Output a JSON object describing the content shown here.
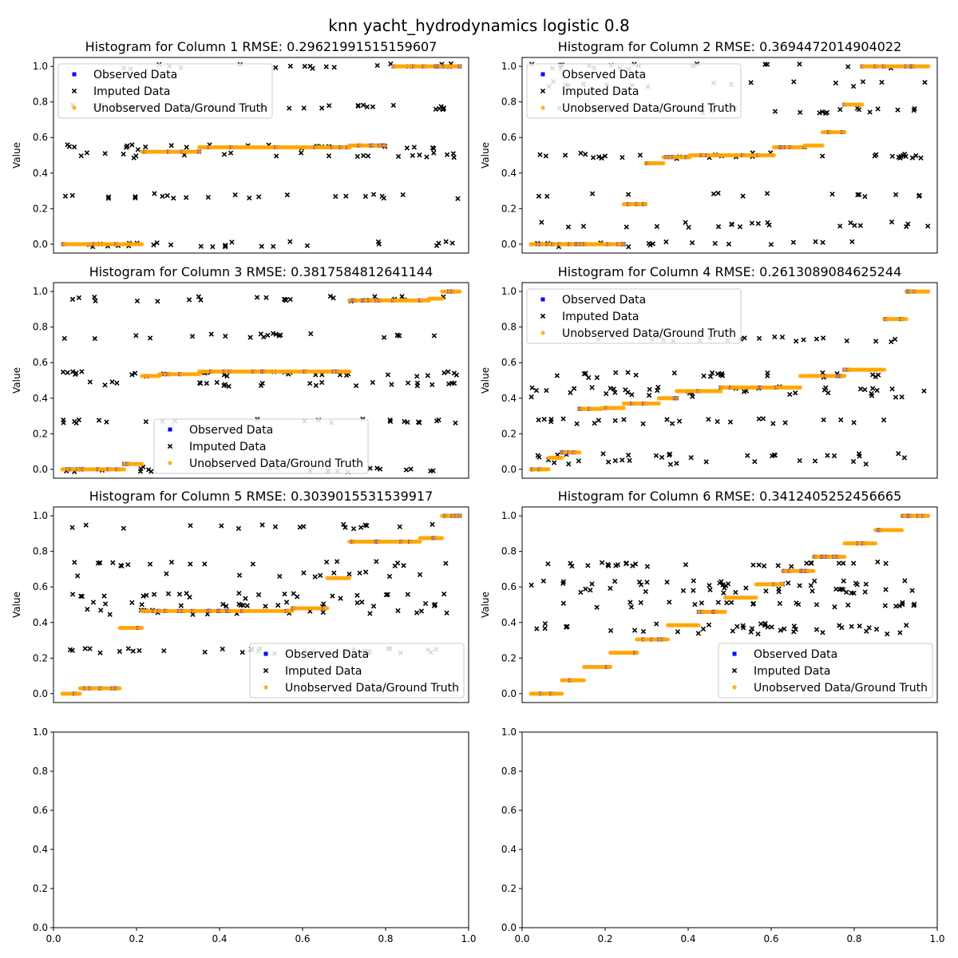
{
  "figure_title": "knn yacht_hydrodynamics logistic 0.8",
  "colors": {
    "observed": "#0000ff",
    "imputed": "#000000",
    "unobserved": "#ffa500",
    "axes": "#000000"
  },
  "chart_data": [
    {
      "type": "scatter",
      "title": "Histogram for Column 1 RMSE: 0.29621991515159607",
      "xlabel": "",
      "ylabel": "Value",
      "xlim": [
        0.03,
        0.97
      ],
      "ylim": [
        -0.05,
        1.05
      ],
      "yticks": [
        0.0,
        0.2,
        0.4,
        0.6,
        0.8,
        1.0
      ],
      "yticklabels": [
        "0.0",
        "0.2",
        "0.4",
        "0.6",
        "0.8",
        "1.0"
      ],
      "show_xticks": false,
      "legend": "upper-left",
      "levels": [
        {
          "y": 0.0,
          "x0": 0.05,
          "x1": 0.23
        },
        {
          "y": 0.52,
          "x0": 0.23,
          "x1": 0.36
        },
        {
          "y": 0.545,
          "x0": 0.36,
          "x1": 0.7
        },
        {
          "y": 0.555,
          "x0": 0.7,
          "x1": 0.78
        },
        {
          "y": 1.0,
          "x0": 0.8,
          "x1": 0.95
        }
      ],
      "imputed_levels": [
        0.0,
        0.27,
        0.5,
        0.545,
        0.77,
        1.0
      ],
      "series": [
        {
          "name": "Observed Data",
          "marker": "square"
        },
        {
          "name": "Imputed Data",
          "marker": "x"
        },
        {
          "name": "Unobserved Data/Ground Truth",
          "marker": "circle"
        }
      ]
    },
    {
      "type": "scatter",
      "title": "Histogram for Column 2 RMSE: 0.3694472014904022",
      "xlabel": "",
      "ylabel": "Value",
      "xlim": [
        0.03,
        0.97
      ],
      "ylim": [
        -0.05,
        1.05
      ],
      "yticks": [
        0.0,
        0.2,
        0.4,
        0.6,
        0.8,
        1.0
      ],
      "yticklabels": [
        "0.0",
        "0.2",
        "0.4",
        "0.6",
        "0.8",
        "1.0"
      ],
      "show_xticks": false,
      "legend": "upper-left",
      "levels": [
        {
          "y": 0.0,
          "x0": 0.05,
          "x1": 0.26
        },
        {
          "y": 0.225,
          "x0": 0.26,
          "x1": 0.31
        },
        {
          "y": 0.455,
          "x0": 0.31,
          "x1": 0.35
        },
        {
          "y": 0.49,
          "x0": 0.35,
          "x1": 0.41
        },
        {
          "y": 0.5,
          "x0": 0.41,
          "x1": 0.6
        },
        {
          "y": 0.545,
          "x0": 0.6,
          "x1": 0.67
        },
        {
          "y": 0.555,
          "x0": 0.67,
          "x1": 0.71
        },
        {
          "y": 0.63,
          "x0": 0.71,
          "x1": 0.76
        },
        {
          "y": 0.785,
          "x0": 0.76,
          "x1": 0.8
        },
        {
          "y": 1.0,
          "x0": 0.8,
          "x1": 0.95
        }
      ],
      "imputed_levels": [
        0.0,
        0.11,
        0.28,
        0.49,
        0.5,
        0.75,
        0.9,
        1.0
      ],
      "series": [
        {
          "name": "Observed Data",
          "marker": "square"
        },
        {
          "name": "Imputed Data",
          "marker": "x"
        },
        {
          "name": "Unobserved Data/Ground Truth",
          "marker": "circle"
        }
      ]
    },
    {
      "type": "scatter",
      "title": "Histogram for Column 3 RMSE: 0.3817584812641144",
      "xlabel": "",
      "ylabel": "Value",
      "xlim": [
        0.03,
        0.97
      ],
      "ylim": [
        -0.05,
        1.05
      ],
      "yticks": [
        0.0,
        0.2,
        0.4,
        0.6,
        0.8,
        1.0
      ],
      "yticklabels": [
        "0.0",
        "0.2",
        "0.4",
        "0.6",
        "0.8",
        "1.0"
      ],
      "show_xticks": false,
      "legend": "lower-center",
      "levels": [
        {
          "y": 0.0,
          "x0": 0.05,
          "x1": 0.19
        },
        {
          "y": 0.03,
          "x0": 0.19,
          "x1": 0.23
        },
        {
          "y": 0.525,
          "x0": 0.23,
          "x1": 0.27
        },
        {
          "y": 0.535,
          "x0": 0.27,
          "x1": 0.36
        },
        {
          "y": 0.55,
          "x0": 0.36,
          "x1": 0.7
        },
        {
          "y": 0.95,
          "x0": 0.7,
          "x1": 0.88
        },
        {
          "y": 0.96,
          "x0": 0.88,
          "x1": 0.91
        },
        {
          "y": 1.0,
          "x0": 0.91,
          "x1": 0.95
        }
      ],
      "imputed_levels": [
        0.0,
        0.27,
        0.48,
        0.535,
        0.75,
        0.96
      ],
      "series": [
        {
          "name": "Observed Data",
          "marker": "square"
        },
        {
          "name": "Imputed Data",
          "marker": "x"
        },
        {
          "name": "Unobserved Data/Ground Truth",
          "marker": "circle"
        }
      ]
    },
    {
      "type": "scatter",
      "title": "Histogram for Column 4 RMSE: 0.2613089084625244",
      "xlabel": "",
      "ylabel": "Value",
      "xlim": [
        0.03,
        0.97
      ],
      "ylim": [
        -0.05,
        1.05
      ],
      "yticks": [
        0.0,
        0.2,
        0.4,
        0.6,
        0.8,
        1.0
      ],
      "yticklabels": [
        "0.0",
        "0.2",
        "0.4",
        "0.6",
        "0.8",
        "1.0"
      ],
      "show_xticks": false,
      "legend": "upper-left",
      "levels": [
        {
          "y": 0.0,
          "x0": 0.05,
          "x1": 0.09
        },
        {
          "y": 0.065,
          "x0": 0.09,
          "x1": 0.12
        },
        {
          "y": 0.095,
          "x0": 0.12,
          "x1": 0.16
        },
        {
          "y": 0.34,
          "x0": 0.16,
          "x1": 0.21
        },
        {
          "y": 0.345,
          "x0": 0.21,
          "x1": 0.26
        },
        {
          "y": 0.37,
          "x0": 0.26,
          "x1": 0.34
        },
        {
          "y": 0.4,
          "x0": 0.34,
          "x1": 0.38
        },
        {
          "y": 0.44,
          "x0": 0.38,
          "x1": 0.48
        },
        {
          "y": 0.46,
          "x0": 0.48,
          "x1": 0.66
        },
        {
          "y": 0.525,
          "x0": 0.66,
          "x1": 0.76
        },
        {
          "y": 0.56,
          "x0": 0.76,
          "x1": 0.85
        },
        {
          "y": 0.845,
          "x0": 0.85,
          "x1": 0.9
        },
        {
          "y": 1.0,
          "x0": 0.9,
          "x1": 0.95
        }
      ],
      "imputed_levels": [
        0.04,
        0.08,
        0.27,
        0.42,
        0.45,
        0.53,
        0.73
      ],
      "series": [
        {
          "name": "Observed Data",
          "marker": "square"
        },
        {
          "name": "Imputed Data",
          "marker": "x"
        },
        {
          "name": "Unobserved Data/Ground Truth",
          "marker": "circle"
        }
      ]
    },
    {
      "type": "scatter",
      "title": "Histogram for Column 5 RMSE: 0.3039015531539917",
      "xlabel": "",
      "ylabel": "Value",
      "xlim": [
        0.03,
        0.97
      ],
      "ylim": [
        -0.05,
        1.05
      ],
      "yticks": [
        0.0,
        0.2,
        0.4,
        0.6,
        0.8,
        1.0
      ],
      "yticklabels": [
        "0.0",
        "0.2",
        "0.4",
        "0.6",
        "0.8",
        "1.0"
      ],
      "show_xticks": false,
      "legend": "lower-right",
      "levels": [
        {
          "y": 0.0,
          "x0": 0.05,
          "x1": 0.09
        },
        {
          "y": 0.03,
          "x0": 0.09,
          "x1": 0.18
        },
        {
          "y": 0.37,
          "x0": 0.18,
          "x1": 0.23
        },
        {
          "y": 0.465,
          "x0": 0.23,
          "x1": 0.57
        },
        {
          "y": 0.48,
          "x0": 0.57,
          "x1": 0.65
        },
        {
          "y": 0.65,
          "x0": 0.65,
          "x1": 0.7
        },
        {
          "y": 0.855,
          "x0": 0.7,
          "x1": 0.86
        },
        {
          "y": 0.875,
          "x0": 0.86,
          "x1": 0.91
        },
        {
          "y": 1.0,
          "x0": 0.91,
          "x1": 0.95
        }
      ],
      "imputed_levels": [
        0.24,
        0.46,
        0.5,
        0.55,
        0.67,
        0.73,
        0.94
      ],
      "series": [
        {
          "name": "Observed Data",
          "marker": "square"
        },
        {
          "name": "Imputed Data",
          "marker": "x"
        },
        {
          "name": "Unobserved Data/Ground Truth",
          "marker": "circle"
        }
      ]
    },
    {
      "type": "scatter",
      "title": "Histogram for Column 6 RMSE: 0.3412405252456665",
      "xlabel": "",
      "ylabel": "Value",
      "xlim": [
        0.03,
        0.97
      ],
      "ylim": [
        -0.05,
        1.05
      ],
      "yticks": [
        0.0,
        0.2,
        0.4,
        0.6,
        0.8,
        1.0
      ],
      "yticklabels": [
        "0.0",
        "0.2",
        "0.4",
        "0.6",
        "0.8",
        "1.0"
      ],
      "show_xticks": false,
      "legend": "lower-right",
      "levels": [
        {
          "y": 0.0,
          "x0": 0.05,
          "x1": 0.12
        },
        {
          "y": 0.075,
          "x0": 0.12,
          "x1": 0.17
        },
        {
          "y": 0.15,
          "x0": 0.17,
          "x1": 0.23
        },
        {
          "y": 0.23,
          "x0": 0.23,
          "x1": 0.29
        },
        {
          "y": 0.305,
          "x0": 0.29,
          "x1": 0.36
        },
        {
          "y": 0.385,
          "x0": 0.36,
          "x1": 0.43
        },
        {
          "y": 0.46,
          "x0": 0.43,
          "x1": 0.49
        },
        {
          "y": 0.54,
          "x0": 0.49,
          "x1": 0.56
        },
        {
          "y": 0.615,
          "x0": 0.56,
          "x1": 0.62
        },
        {
          "y": 0.69,
          "x0": 0.62,
          "x1": 0.69
        },
        {
          "y": 0.77,
          "x0": 0.69,
          "x1": 0.76
        },
        {
          "y": 0.845,
          "x0": 0.76,
          "x1": 0.83
        },
        {
          "y": 0.92,
          "x0": 0.83,
          "x1": 0.89
        },
        {
          "y": 1.0,
          "x0": 0.89,
          "x1": 0.95
        }
      ],
      "imputed_levels": [
        0.35,
        0.38,
        0.5,
        0.58,
        0.62,
        0.73
      ],
      "series": [
        {
          "name": "Observed Data",
          "marker": "square"
        },
        {
          "name": "Imputed Data",
          "marker": "x"
        },
        {
          "name": "Unobserved Data/Ground Truth",
          "marker": "circle"
        }
      ]
    },
    {
      "type": "scatter",
      "title": "",
      "xlabel": "",
      "ylabel": "",
      "xlim": [
        0.0,
        1.0
      ],
      "ylim": [
        0.0,
        1.0
      ],
      "xticks": [
        0.0,
        0.2,
        0.4,
        0.6,
        0.8,
        1.0
      ],
      "xticklabels": [
        "0.0",
        "0.2",
        "0.4",
        "0.6",
        "0.8",
        "1.0"
      ],
      "yticks": [
        0.0,
        0.2,
        0.4,
        0.6,
        0.8,
        1.0
      ],
      "yticklabels": [
        "0.0",
        "0.2",
        "0.4",
        "0.6",
        "0.8",
        "1.0"
      ],
      "show_xticks": true,
      "legend": "none",
      "levels": [],
      "imputed_levels": [],
      "series": []
    },
    {
      "type": "scatter",
      "title": "",
      "xlabel": "",
      "ylabel": "",
      "xlim": [
        0.0,
        1.0
      ],
      "ylim": [
        0.0,
        1.0
      ],
      "xticks": [
        0.0,
        0.2,
        0.4,
        0.6,
        0.8,
        1.0
      ],
      "xticklabels": [
        "0.0",
        "0.2",
        "0.4",
        "0.6",
        "0.8",
        "1.0"
      ],
      "yticks": [
        0.0,
        0.2,
        0.4,
        0.6,
        0.8,
        1.0
      ],
      "yticklabels": [
        "0.0",
        "0.2",
        "0.4",
        "0.6",
        "0.8",
        "1.0"
      ],
      "show_xticks": true,
      "legend": "none",
      "levels": [],
      "imputed_levels": [],
      "series": []
    }
  ]
}
